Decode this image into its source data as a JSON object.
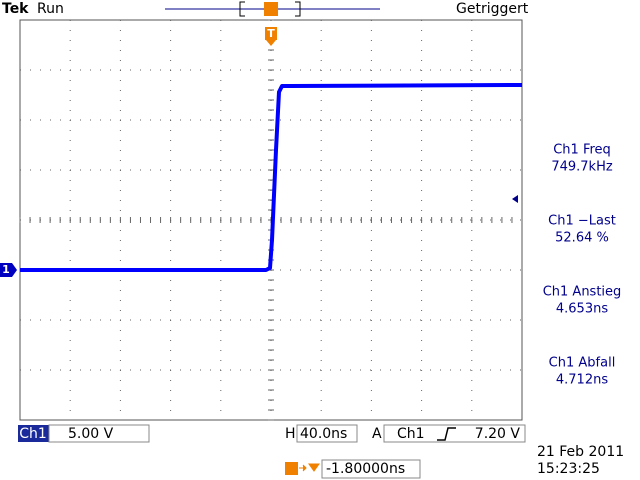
{
  "header": {
    "brand": "Tek",
    "status": "Run",
    "trigger_state": "Getriggert",
    "trigger_marker": "T"
  },
  "channel_marker": "1",
  "measurements": [
    {
      "label": "Ch1 Freq",
      "value": "749.7kHz"
    },
    {
      "label": "Ch1 −Last",
      "value": "52.64 %"
    },
    {
      "label": "Ch1 Anstieg",
      "value": "4.653ns"
    },
    {
      "label": "Ch1 Abfall",
      "value": "4.712ns"
    }
  ],
  "status_bar": {
    "channel": "Ch1",
    "volts_per_div": "5.00 V",
    "horizontal_label": "H",
    "time_per_div": "40.0ns",
    "acquisition_label": "A",
    "trigger_channel": "Ch1",
    "trigger_level": "7.20 V",
    "trigger_position": "-1.80000ns",
    "date": "21 Feb 2011",
    "time": "15:23:25"
  }
}
